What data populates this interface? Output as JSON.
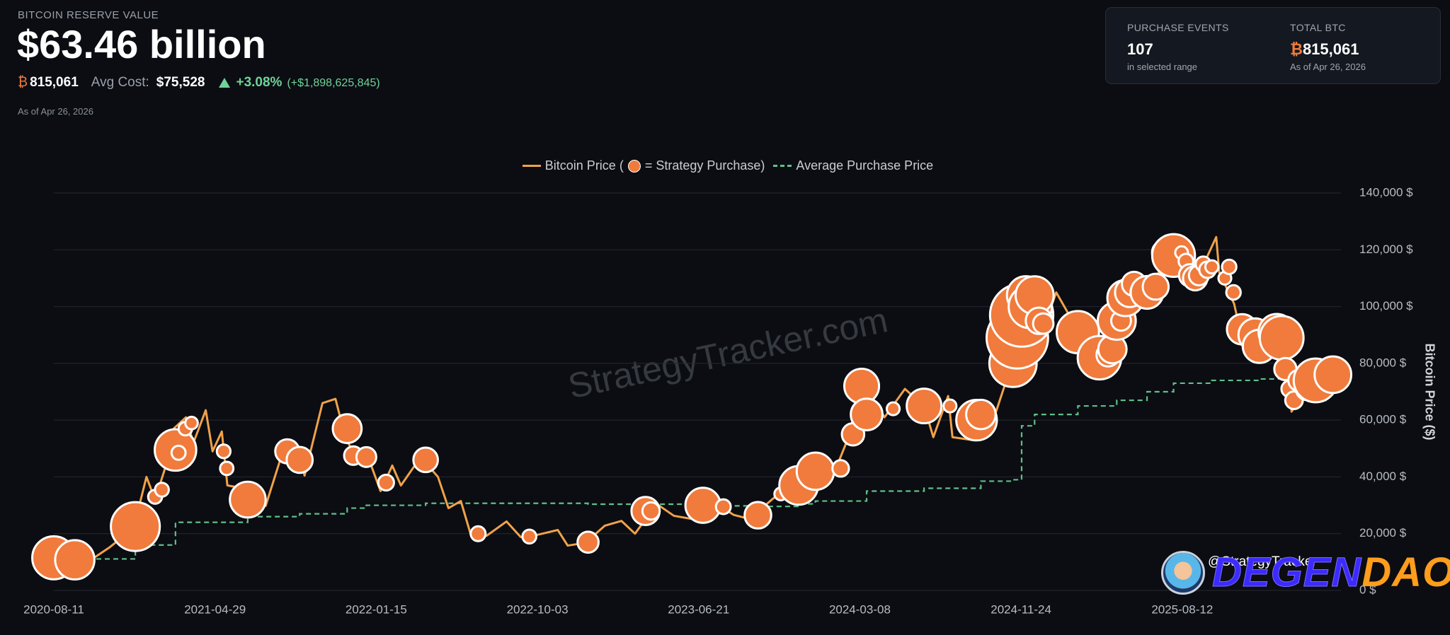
{
  "header": {
    "section_label": "BITCOIN RESERVE VALUE",
    "value": "$63.46 billion",
    "btc_symbol": "₿",
    "btc": "815,061",
    "avg_cost_label": "Avg Cost:",
    "avg_cost": "$75,528",
    "change": "+3.08%",
    "change_amount": "(+$1,898,625,845)",
    "as_of": "As of Apr 26, 2026"
  },
  "stats": [
    {
      "label": "PURCHASE EVENTS",
      "value": "107",
      "note": "in selected range"
    },
    {
      "label": "TOTAL BTC",
      "symbol": "₿",
      "value": "815,061",
      "note": "As of Apr 26, 2026"
    }
  ],
  "watermark": "StrategyTracker.com",
  "handle": "@StrategyTracker",
  "logo": [
    "DEGEN",
    "DAO!"
  ],
  "chart_data": {
    "type": "line",
    "y_axis_label": "Bitcoin Price ($)",
    "xlim": [
      "2020-08-11",
      "2026-04-26"
    ],
    "xticks": [
      "2020-08-11",
      "2021-04-29",
      "2022-01-15",
      "2022-10-03",
      "2023-06-21",
      "2024-03-08",
      "2024-11-24",
      "2025-08-12"
    ],
    "ylim": [
      0,
      140000
    ],
    "yticks": [
      {
        "value": 0,
        "label": "0 $"
      },
      {
        "value": 20000,
        "label": "20,000 $"
      },
      {
        "value": 40000,
        "label": "40,000 $"
      },
      {
        "value": 60000,
        "label": "60,000 $"
      },
      {
        "value": 80000,
        "label": "80,000 $"
      },
      {
        "value": 100000,
        "label": "100,000 $"
      },
      {
        "value": 120000,
        "label": "120,000 $"
      },
      {
        "value": 140000,
        "label": "140,000 $"
      }
    ],
    "grid": true,
    "legend_brackets": [
      "(",
      ")"
    ],
    "series": [
      {
        "name": "Bitcoin Price",
        "color": "#f0a24a",
        "style": "solid",
        "x": [
          "2020-08-11",
          "2020-09-15",
          "2020-10-15",
          "2020-11-10",
          "2020-12-01",
          "2020-12-20",
          "2021-01-08",
          "2021-01-22",
          "2021-02-10",
          "2021-02-21",
          "2021-03-13",
          "2021-03-25",
          "2021-04-14",
          "2021-04-25",
          "2021-05-10",
          "2021-05-19",
          "2021-06-01",
          "2021-06-22",
          "2021-07-08",
          "2021-07-20",
          "2021-08-14",
          "2021-09-06",
          "2021-09-21",
          "2021-10-20",
          "2021-11-10",
          "2021-11-26",
          "2021-12-10",
          "2022-01-01",
          "2022-01-22",
          "2022-02-10",
          "2022-02-24",
          "2022-03-28",
          "2022-04-25",
          "2022-05-12",
          "2022-06-01",
          "2022-06-18",
          "2022-07-13",
          "2022-08-14",
          "2022-09-06",
          "2022-10-03",
          "2022-11-05",
          "2022-11-21",
          "2022-12-20",
          "2023-01-20",
          "2023-02-16",
          "2023-03-10",
          "2023-04-14",
          "2023-05-12",
          "2023-06-15",
          "2023-07-13",
          "2023-08-17",
          "2023-09-11",
          "2023-10-23",
          "2023-11-15",
          "2023-12-08",
          "2024-01-11",
          "2024-01-23",
          "2024-02-15",
          "2024-03-14",
          "2024-04-17",
          "2024-05-20",
          "2024-06-20",
          "2024-07-05",
          "2024-07-29",
          "2024-08-05",
          "2024-09-06",
          "2024-09-27",
          "2024-10-10",
          "2024-10-29",
          "2024-11-13",
          "2024-12-05",
          "2024-12-17",
          "2024-12-30",
          "2025-01-20",
          "2025-02-10",
          "2025-02-28",
          "2025-03-10",
          "2025-04-08",
          "2025-05-22",
          "2025-06-22",
          "2025-07-14",
          "2025-08-02",
          "2025-08-14",
          "2025-09-01",
          "2025-10-06",
          "2025-10-11",
          "2025-11-04",
          "2025-11-21",
          "2025-12-10",
          "2026-01-14",
          "2026-01-31",
          "2026-02-05",
          "2026-02-20",
          "2026-03-10",
          "2026-04-01",
          "2026-04-26"
        ],
        "values": [
          11500,
          10800,
          11500,
          15300,
          19000,
          23500,
          40000,
          32000,
          45000,
          57000,
          61000,
          52000,
          63500,
          49000,
          56000,
          37000,
          36500,
          32500,
          33800,
          29800,
          47000,
          51700,
          40500,
          66000,
          67500,
          54000,
          48000,
          47500,
          35000,
          44000,
          37000,
          47000,
          40000,
          29000,
          31500,
          19000,
          19300,
          24300,
          18800,
          19600,
          21300,
          15800,
          16800,
          22800,
          24500,
          20000,
          30500,
          26300,
          25000,
          31400,
          26600,
          25200,
          33000,
          37000,
          44000,
          46500,
          39500,
          52000,
          73000,
          61000,
          71000,
          65000,
          54000,
          68500,
          54000,
          53000,
          65800,
          60000,
          72500,
          90000,
          98000,
          106500,
          92000,
          105000,
          97000,
          84000,
          78500,
          76300,
          111000,
          100000,
          121000,
          113000,
          123500,
          108000,
          124500,
          112000,
          101000,
          84500,
          92500,
          96000,
          78000,
          63000,
          68000,
          70000,
          67000,
          78500
        ]
      },
      {
        "name": "Average Purchase Price",
        "color": "#5fbf8a",
        "style": "dashed",
        "x": [
          "2020-08-11",
          "2020-12-21",
          "2021-02-24",
          "2021-06-21",
          "2021-09-13",
          "2021-11-29",
          "2021-12-30",
          "2022-04-05",
          "2022-12-24",
          "2023-06-28",
          "2023-09-25",
          "2023-11-30",
          "2023-12-27",
          "2024-03-19",
          "2024-06-20",
          "2024-09-20",
          "2024-11-11",
          "2024-11-25",
          "2024-12-16",
          "2025-02-24",
          "2025-04-28",
          "2025-06-16",
          "2025-07-29",
          "2025-09-29",
          "2025-12-15",
          "2026-01-20",
          "2026-04-26"
        ],
        "values": [
          11100,
          16000,
          24000,
          26000,
          27000,
          29000,
          30000,
          30700,
          30400,
          29800,
          29600,
          30500,
          31500,
          35000,
          36000,
          38500,
          39000,
          58000,
          62000,
          65000,
          67000,
          70000,
          73000,
          74000,
          74500,
          76000,
          75528
        ]
      }
    ],
    "purchases": {
      "name": "= Strategy Purchase",
      "color": "#f07b3c",
      "x": [
        "2020-08-11",
        "2020-09-14",
        "2020-12-21",
        "2021-01-22",
        "2021-02-02",
        "2021-02-24",
        "2021-03-01",
        "2021-03-12",
        "2021-03-22",
        "2021-05-13",
        "2021-05-18",
        "2021-06-21",
        "2021-08-24",
        "2021-09-13",
        "2021-11-29",
        "2021-12-09",
        "2021-12-30",
        "2022-01-31",
        "2022-04-05",
        "2022-06-29",
        "2022-09-20",
        "2022-12-24",
        "2023-03-27",
        "2023-04-05",
        "2023-06-28",
        "2023-07-31",
        "2023-09-25",
        "2023-11-01",
        "2023-11-30",
        "2023-12-27",
        "2024-02-06",
        "2024-02-26",
        "2024-03-11",
        "2024-03-19",
        "2024-05-01",
        "2024-06-20",
        "2024-08-01",
        "2024-09-13",
        "2024-09-20",
        "2024-11-11",
        "2024-11-18",
        "2024-11-25",
        "2024-12-02",
        "2024-12-09",
        "2024-12-16",
        "2024-12-23",
        "2024-12-30",
        "2025-02-24",
        "2025-03-17",
        "2025-03-31",
        "2025-04-14",
        "2025-04-21",
        "2025-04-28",
        "2025-05-05",
        "2025-05-12",
        "2025-05-19",
        "2025-05-26",
        "2025-06-02",
        "2025-06-09",
        "2025-06-16",
        "2025-06-30",
        "2025-07-14",
        "2025-07-21",
        "2025-07-29",
        "2025-08-11",
        "2025-08-18",
        "2025-08-25",
        "2025-09-02",
        "2025-09-08",
        "2025-09-15",
        "2025-09-22",
        "2025-09-29",
        "2025-10-20",
        "2025-10-27",
        "2025-11-03",
        "2025-11-17",
        "2025-12-08",
        "2025-12-15",
        "2026-01-12",
        "2026-01-20",
        "2026-01-26",
        "2026-02-02",
        "2026-02-09",
        "2026-02-17",
        "2026-03-02",
        "2026-03-16",
        "2026-04-13"
      ],
      "values": [
        11500,
        10800,
        22500,
        33000,
        35500,
        49500,
        48500,
        57000,
        59000,
        49000,
        43000,
        32000,
        49000,
        46000,
        57000,
        47500,
        47000,
        38000,
        46000,
        20000,
        19000,
        17000,
        28000,
        28000,
        30000,
        29500,
        26500,
        34000,
        37000,
        42000,
        43000,
        55000,
        72000,
        62000,
        64000,
        65000,
        65000,
        60000,
        62000,
        80000,
        89000,
        97000,
        104000,
        100000,
        104000,
        95000,
        94000,
        91000,
        83000,
        82000,
        83000,
        85000,
        95000,
        95000,
        103000,
        105000,
        108000,
        105000,
        106000,
        105000,
        107000,
        119000,
        118000,
        118000,
        119000,
        116000,
        111000,
        110000,
        111000,
        115000,
        113000,
        114000,
        110000,
        114000,
        105000,
        92000,
        90000,
        86000,
        91000,
        89000,
        78000,
        71000,
        67000,
        74000,
        71000,
        74000,
        76000
      ],
      "sizes": [
        21454,
        16796,
        29646,
        314,
        295,
        19452,
        328,
        262,
        130,
        271,
        229,
        13005,
        3907,
        5050,
        7002,
        1434,
        1914,
        660,
        4167,
        480,
        301,
        2395,
        6455,
        1045,
        12333,
        467,
        5445,
        155,
        16130,
        14620,
        850,
        3000,
        12000,
        9245,
        164,
        11931,
        169,
        18300,
        7420,
        27200,
        51780,
        55500,
        15400,
        21550,
        15350,
        5262,
        2138,
        20356,
        130,
        22048,
        3459,
        6556,
        15355,
        1895,
        13390,
        7390,
        4020,
        705,
        1045,
        10100,
        4980,
        4225,
        6220,
        21021,
        155,
        430,
        3081,
        4048,
        1955,
        525,
        850,
        196,
        168,
        390,
        397,
        8178,
        10624,
        10645,
        13627,
        22305,
        2932,
        855,
        1142,
        2486,
        3015,
        22337,
        13927
      ]
    }
  }
}
